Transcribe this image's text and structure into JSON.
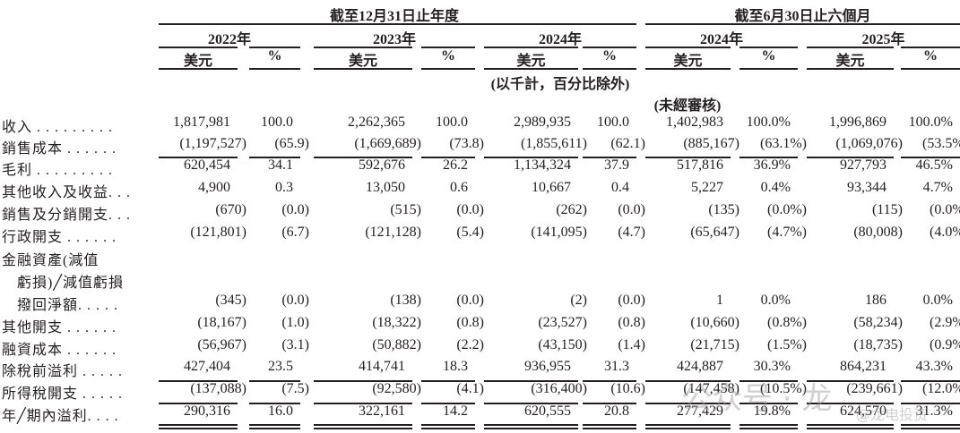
{
  "header": {
    "group_annual": "截至12月31日止年度",
    "group_interim": "截至6月30日止六個月",
    "years": [
      "2022年",
      "2023年",
      "2024年",
      "2024年",
      "2025年"
    ],
    "usd": "美元",
    "pct": "%",
    "unit_note": "(以千計，百分比除外)",
    "unaudited": "(未經審核)"
  },
  "rows": [
    {
      "label": "收入 . . . . . . . . .",
      "values": [
        "1,817,981",
        "100.0",
        "2,262,365",
        "100.0",
        "2,989,935",
        "100.0",
        "1,402,983",
        "100.0%",
        "1,996,869",
        "100.0%"
      ]
    },
    {
      "label": "銷售成本 . . . . . .",
      "values": [
        "(1,197,527)",
        "(65.9)",
        "(1,669,689)",
        "(73.8)",
        "(1,855,611)",
        "(62.1)",
        "(885,167)",
        "(63.1%)",
        "(1,069,076)",
        "(53.5%)"
      ]
    },
    {
      "label": "毛利 . . . . . . . . .",
      "values": [
        "620,454",
        "34.1",
        "592,676",
        "26.2",
        "1,134,324",
        "37.9",
        "517,816",
        "36.9%",
        "927,793",
        "46.5%"
      ]
    },
    {
      "label": "其他收入及收益. . .",
      "values": [
        "4,900",
        "0.3",
        "13,050",
        "0.6",
        "10,667",
        "0.4",
        "5,227",
        "0.4%",
        "93,344",
        "4.7%"
      ]
    },
    {
      "label": "銷售及分銷開支. . .",
      "values": [
        "(670)",
        "(0.0)",
        "(515)",
        "(0.0)",
        "(262)",
        "(0.0)",
        "(135)",
        "(0.0%)",
        "(115)",
        "(0.0%)"
      ]
    },
    {
      "label": "行政開支 . . . . . .",
      "values": [
        "(121,801)",
        "(6.7)",
        "(121,128)",
        "(5.4)",
        "(141,095)",
        "(4.7)",
        "(65,647)",
        "(4.7%)",
        "(80,008)",
        "(4.0%)"
      ]
    },
    {
      "label": "金融資產(減值",
      "values": []
    },
    {
      "label": "　虧損)╱減值虧損",
      "values": []
    },
    {
      "label": "　撥回淨額. . . . .",
      "values": [
        "(345)",
        "(0.0)",
        "(138)",
        "(0.0)",
        "(2)",
        "(0.0)",
        "1",
        "0.0%",
        "186",
        "0.0%"
      ]
    },
    {
      "label": "其他開支 . . . . . .",
      "values": [
        "(18,167)",
        "(1.0)",
        "(18,322)",
        "(0.8)",
        "(23,527)",
        "(0.8)",
        "(10,660)",
        "(0.8%)",
        "(58,234)",
        "(2.9%)"
      ]
    },
    {
      "label": "融資成本 . . . . . .",
      "values": [
        "(56,967)",
        "(3.1)",
        "(50,882)",
        "(2.2)",
        "(43,150)",
        "(1.4)",
        "(21,715)",
        "(1.5%)",
        "(18,735)",
        "(0.9%)"
      ]
    },
    {
      "label": "除稅前溢利 . . . . .",
      "values": [
        "427,404",
        "23.5",
        "414,741",
        "18.3",
        "936,955",
        "31.3",
        "424,887",
        "30.3%",
        "864,231",
        "43.3%"
      ]
    },
    {
      "label": "所得稅開支 . . . . .",
      "values": [
        "(137,088)",
        "(7.5)",
        "(92,580)",
        "(4.1)",
        "(316,400)",
        "(10.6)",
        "(147,458)",
        "(10.5%)",
        "(239,661)",
        "(12.0%)"
      ]
    },
    {
      "label": "年╱期內溢利. . . .",
      "values": [
        "290,316",
        "16.0",
        "322,161",
        "14.2",
        "620,555",
        "20.8",
        "277,429",
        "19.8%",
        "624,570",
        "31.3%"
      ]
    }
  ],
  "watermark": {
    "text1": "公众号 · 龙",
    "text2": "@龙电投资"
  }
}
